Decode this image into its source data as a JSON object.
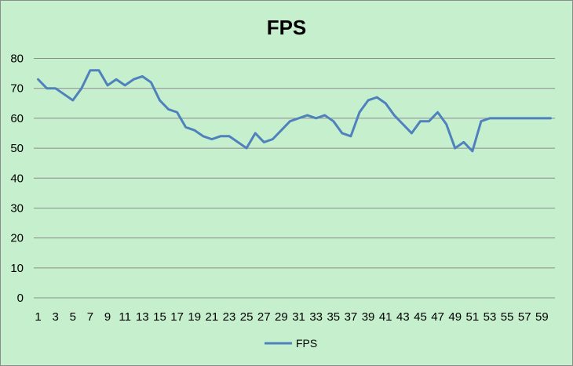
{
  "chart_data": {
    "type": "line",
    "title": "FPS",
    "xlabel": "",
    "ylabel": "",
    "ylim": [
      0,
      80
    ],
    "yticks": [
      0,
      10,
      20,
      30,
      40,
      50,
      60,
      70,
      80
    ],
    "x_tick_labels": [
      "1",
      "3",
      "5",
      "7",
      "9",
      "11",
      "13",
      "15",
      "17",
      "19",
      "21",
      "23",
      "25",
      "27",
      "29",
      "31",
      "33",
      "35",
      "37",
      "39",
      "41",
      "43",
      "45",
      "47",
      "49",
      "51",
      "53",
      "55",
      "57",
      "59"
    ],
    "grid": true,
    "legend_position": "bottom",
    "series_color": "#4f81bd",
    "x": [
      1,
      2,
      3,
      4,
      5,
      6,
      7,
      8,
      9,
      10,
      11,
      12,
      13,
      14,
      15,
      16,
      17,
      18,
      19,
      20,
      21,
      22,
      23,
      24,
      25,
      26,
      27,
      28,
      29,
      30,
      31,
      32,
      33,
      34,
      35,
      36,
      37,
      38,
      39,
      40,
      41,
      42,
      43,
      44,
      45,
      46,
      47,
      48,
      49,
      50,
      51,
      52,
      53,
      54,
      55,
      56,
      57,
      58,
      59,
      60
    ],
    "series": [
      {
        "name": "FPS",
        "values": [
          73,
          70,
          70,
          68,
          66,
          70,
          76,
          76,
          71,
          73,
          71,
          73,
          74,
          72,
          66,
          63,
          62,
          57,
          56,
          54,
          53,
          54,
          54,
          52,
          50,
          55,
          52,
          53,
          56,
          59,
          60,
          61,
          60,
          61,
          59,
          55,
          54,
          62,
          66,
          67,
          65,
          61,
          58,
          55,
          59,
          59,
          62,
          58,
          50,
          52,
          49,
          59,
          60,
          60,
          60,
          60,
          60,
          60,
          60,
          60
        ]
      }
    ]
  }
}
